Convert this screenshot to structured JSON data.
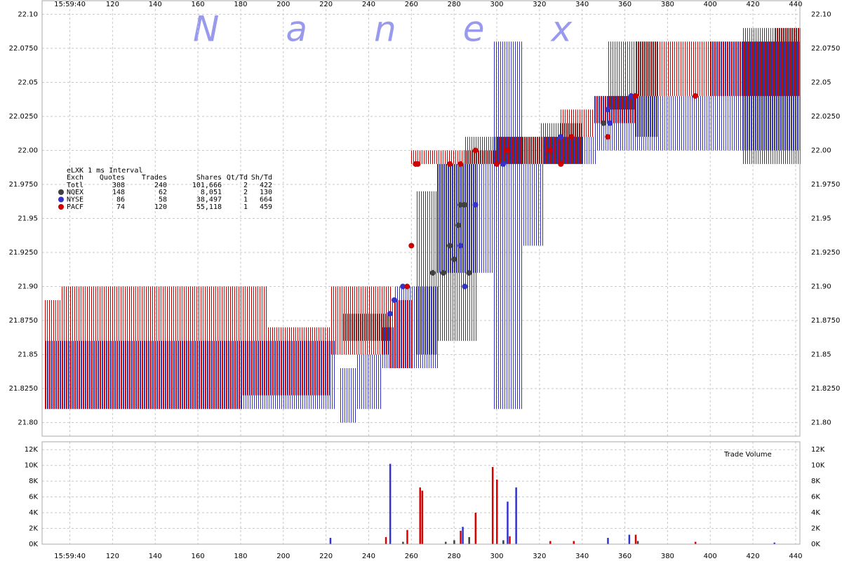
{
  "watermark": "Nanex",
  "stats": {
    "title": "eLXK 1 ms Interval",
    "headers": [
      "Exch",
      "Quotes",
      "Trades",
      "Shares",
      "Qt/Td",
      "Sh/Td"
    ],
    "total": [
      "Totl",
      "308",
      "240",
      "101,666",
      "2",
      "422"
    ],
    "rows": [
      [
        "148",
        "62",
        "8,051",
        "2",
        "130"
      ],
      [
        "86",
        "58",
        "38,497",
        "1",
        "664"
      ],
      [
        "74",
        "120",
        "55,118",
        "1",
        "459"
      ]
    ]
  },
  "chart_data": [
    {
      "type": "quote-band",
      "xlim": [
        87,
        442
      ],
      "ylim": [
        21.79,
        22.11
      ],
      "grid": true,
      "xticks": [
        {
          "value": 100,
          "label": "15:59:40"
        },
        120,
        140,
        160,
        180,
        200,
        220,
        240,
        260,
        280,
        300,
        320,
        340,
        360,
        380,
        400,
        420,
        440
      ],
      "yticks": [
        {
          "value": 21.8,
          "label": "21.80"
        },
        {
          "value": 21.825,
          "label": "21.8250"
        },
        21.85,
        {
          "value": 21.875,
          "label": "21.8750"
        },
        {
          "value": 21.9,
          "label": "21.90"
        },
        {
          "value": 21.925,
          "label": "21.9250"
        },
        21.95,
        {
          "value": 21.975,
          "label": "21.9750"
        },
        {
          "value": 22,
          "label": "22.00"
        },
        {
          "value": 22.025,
          "label": "22.0250"
        },
        22.05,
        {
          "value": 22.075,
          "label": "22.0750"
        },
        {
          "value": 22.1,
          "label": "22.10"
        }
      ],
      "series": [
        {
          "name": "NQEX",
          "color": "#404040",
          "bands": [
            [
              228,
              250,
              21.86,
              21.88
            ],
            [
              262,
              272,
              21.85,
              21.97
            ],
            [
              272,
              290,
              21.86,
              21.99
            ],
            [
              285,
              300,
              21.99,
              22.01
            ],
            [
              300,
              320,
              21.99,
              22.01
            ],
            [
              320,
              340,
              21.99,
              22.02
            ],
            [
              352,
              365,
              22.03,
              22.08
            ],
            [
              365,
              375,
              22.01,
              22.08
            ],
            [
              415,
              442,
              21.99,
              22.09
            ]
          ],
          "trades": {
            "x": [
              270,
              275,
              278,
              280,
              282,
              283,
              285,
              287,
              350
            ],
            "y": [
              21.91,
              21.91,
              21.93,
              21.92,
              21.945,
              21.96,
              21.96,
              21.91,
              22.02
            ]
          }
        },
        {
          "name": "NYSE",
          "color": "#3333cc",
          "bands": [
            [
              88,
              180,
              21.81,
              21.86
            ],
            [
              180,
              224,
              21.81,
              21.86
            ],
            [
              226,
              234,
              21.8,
              21.84
            ],
            [
              234,
              246,
              21.81,
              21.85
            ],
            [
              246,
              252,
              21.84,
              21.87
            ],
            [
              252,
              272,
              21.84,
              21.9
            ],
            [
              272,
              298,
              21.91,
              21.99
            ],
            [
              298,
              312,
              21.81,
              22.08
            ],
            [
              312,
              322,
              21.93,
              21.99
            ],
            [
              322,
              346,
              21.99,
              22.01
            ],
            [
              346,
              400,
              22.0,
              22.04
            ],
            [
              400,
              442,
              22.0,
              22.08
            ]
          ],
          "trades": {
            "x": [
              250,
              252,
              256,
              283,
              285,
              290,
              303,
              330,
              352,
              353,
              363
            ],
            "y": [
              21.88,
              21.89,
              21.9,
              21.93,
              21.9,
              21.96,
              21.99,
              22.01,
              22.03,
              22.02,
              22.04
            ]
          }
        },
        {
          "name": "PACF",
          "color": "#cc0000",
          "bands": [
            [
              88,
              96,
              21.81,
              21.89
            ],
            [
              96,
              180,
              21.81,
              21.9
            ],
            [
              180,
              192,
              21.82,
              21.9
            ],
            [
              192,
              222,
              21.82,
              21.87
            ],
            [
              222,
              250,
              21.85,
              21.9
            ],
            [
              250,
              260,
              21.84,
              21.89
            ],
            [
              260,
              300,
              21.99,
              22.0
            ],
            [
              300,
              340,
              21.99,
              22.01
            ],
            [
              330,
              345,
              22.01,
              22.03
            ],
            [
              345,
              365,
              22.02,
              22.04
            ],
            [
              365,
              400,
              22.04,
              22.08
            ],
            [
              400,
              430,
              22.04,
              22.08
            ],
            [
              430,
              442,
              22.04,
              22.09
            ]
          ],
          "trades": {
            "x": [
              258,
              260,
              262,
              263,
              278,
              283,
              290,
              300,
              305,
              325,
              330,
              335,
              352,
              365,
              393
            ],
            "y": [
              21.9,
              21.93,
              21.99,
              21.99,
              21.99,
              21.99,
              22.0,
              21.99,
              22.0,
              22.0,
              21.99,
              22.01,
              22.01,
              22.04,
              22.04
            ]
          }
        }
      ]
    },
    {
      "type": "bar",
      "title": "Trade Volume",
      "xlim": [
        87,
        442
      ],
      "ylim": [
        0,
        13000
      ],
      "grid": true,
      "xticks": [
        {
          "value": 100,
          "label": "15:59:40"
        },
        120,
        140,
        160,
        180,
        200,
        220,
        240,
        260,
        280,
        300,
        320,
        340,
        360,
        380,
        400,
        420,
        440
      ],
      "yticks": [
        {
          "value": 0,
          "label": "0K"
        },
        {
          "value": 2000,
          "label": "2K"
        },
        {
          "value": 4000,
          "label": "4K"
        },
        {
          "value": 6000,
          "label": "6K"
        },
        {
          "value": 8000,
          "label": "8K"
        },
        {
          "value": 10000,
          "label": "10K"
        },
        {
          "value": 12000,
          "label": "12K"
        }
      ],
      "series": [
        {
          "color": "#3333cc",
          "x": [
            222,
            250,
            284,
            303,
            305,
            309,
            352,
            362,
            430
          ],
          "values": [
            800,
            10200,
            2200,
            300,
            5400,
            7200,
            800,
            1200,
            200
          ]
        },
        {
          "color": "#dd0000",
          "x": [
            248,
            258,
            264,
            265,
            283,
            290,
            298,
            300,
            306,
            325,
            336,
            365,
            393
          ],
          "values": [
            900,
            1800,
            7200,
            6800,
            1700,
            4000,
            9800,
            8200,
            1000,
            400,
            400,
            1200,
            300
          ]
        },
        {
          "color": "#404040",
          "x": [
            256,
            276,
            280,
            287,
            303,
            366
          ],
          "values": [
            300,
            300,
            500,
            900,
            500,
            400
          ]
        }
      ]
    }
  ]
}
